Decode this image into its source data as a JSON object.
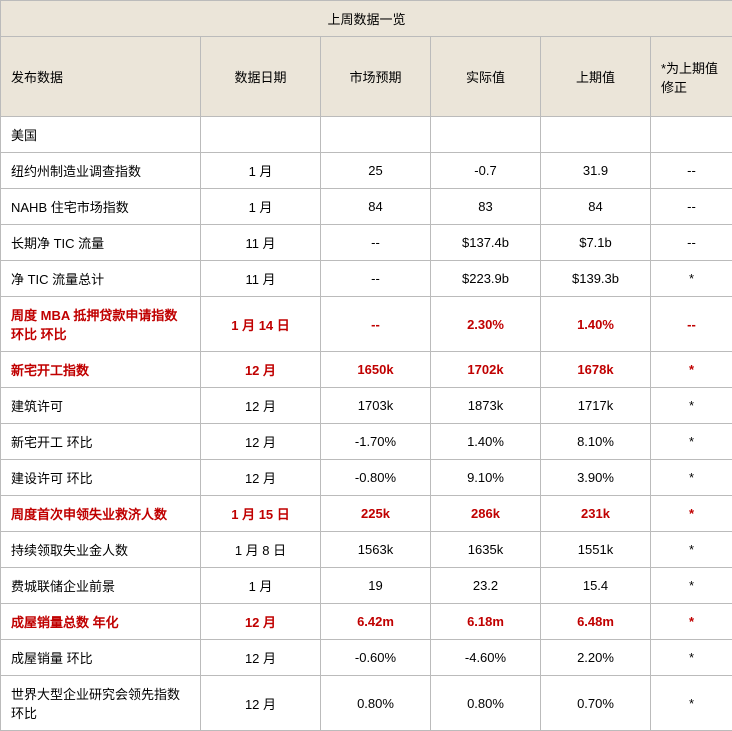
{
  "title": "上周数据一览",
  "headers": {
    "indicator": "发布数据",
    "date": "数据日期",
    "forecast": "市场预期",
    "actual": "实际值",
    "previous": "上期值",
    "revised": "*为上期值修正"
  },
  "section_us": "美国",
  "rows": [
    {
      "label": "纽约州制造业调查指数",
      "date": "1 月",
      "forecast": "25",
      "actual": "-0.7",
      "previous": "31.9",
      "revised": "--",
      "red": false
    },
    {
      "label": "NAHB 住宅市场指数",
      "date": "1 月",
      "forecast": "84",
      "actual": "83",
      "previous": "84",
      "revised": "--",
      "red": false
    },
    {
      "label": "长期净 TIC 流量",
      "date": "11 月",
      "forecast": "--",
      "actual": "$137.4b",
      "previous": "$7.1b",
      "revised": "--",
      "red": false
    },
    {
      "label": "净 TIC 流量总计",
      "date": "11 月",
      "forecast": "--",
      "actual": "$223.9b",
      "previous": "$139.3b",
      "revised": "*",
      "red": false
    },
    {
      "label": "周度 MBA 抵押贷款申请指数  环比  环比",
      "date": "1 月 14 日",
      "forecast": "--",
      "actual": "2.30%",
      "previous": "1.40%",
      "revised": "--",
      "red": true
    },
    {
      "label": "新宅开工指数",
      "date": "12 月",
      "forecast": "1650k",
      "actual": "1702k",
      "previous": "1678k",
      "revised": "*",
      "red": true
    },
    {
      "label": "建筑许可",
      "date": "12 月",
      "forecast": "1703k",
      "actual": "1873k",
      "previous": "1717k",
      "revised": "*",
      "red": false
    },
    {
      "label": "新宅开工  环比",
      "date": "12 月",
      "forecast": "-1.70%",
      "actual": "1.40%",
      "previous": "8.10%",
      "revised": "*",
      "red": false
    },
    {
      "label": "建设许可  环比",
      "date": "12 月",
      "forecast": "-0.80%",
      "actual": "9.10%",
      "previous": "3.90%",
      "revised": "*",
      "red": false
    },
    {
      "label": "周度首次申领失业救济人数",
      "date": "1 月 15 日",
      "forecast": "225k",
      "actual": "286k",
      "previous": "231k",
      "revised": "*",
      "red": true
    },
    {
      "label": "持续领取失业金人数",
      "date": "1 月 8 日",
      "forecast": "1563k",
      "actual": "1635k",
      "previous": "1551k",
      "revised": "*",
      "red": false
    },
    {
      "label": "费城联储企业前景",
      "date": "1 月",
      "forecast": "19",
      "actual": "23.2",
      "previous": "15.4",
      "revised": "*",
      "red": false
    },
    {
      "label": "成屋销量总数  年化",
      "date": "12 月",
      "forecast": "6.42m",
      "actual": "6.18m",
      "previous": "6.48m",
      "revised": "*",
      "red": true
    },
    {
      "label": "成屋销量  环比",
      "date": "12 月",
      "forecast": "-0.60%",
      "actual": "-4.60%",
      "previous": "2.20%",
      "revised": "*",
      "red": false
    },
    {
      "label": "世界大型企业研究会领先指数  环比",
      "date": "12 月",
      "forecast": "0.80%",
      "actual": "0.80%",
      "previous": "0.70%",
      "revised": "*",
      "red": false
    }
  ]
}
